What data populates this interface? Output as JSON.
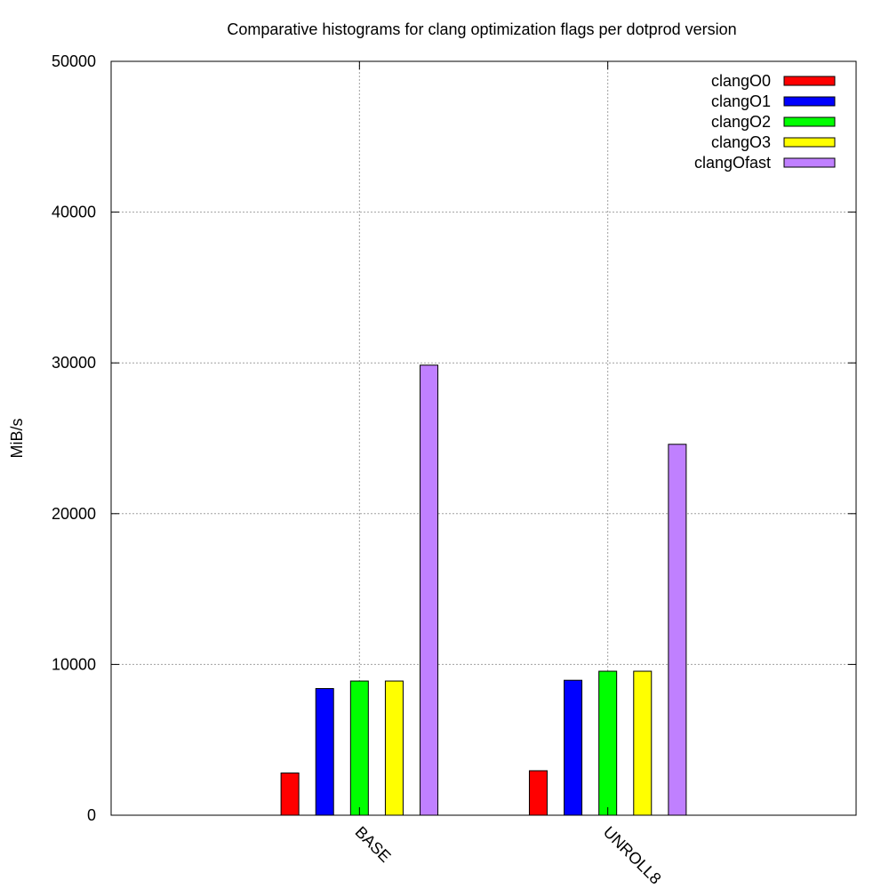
{
  "chart_data": {
    "type": "bar",
    "title": "Comparative histograms for clang optimization flags per dotprod version",
    "xlabel": "",
    "ylabel": "MiB/s",
    "ylim": [
      0,
      50000
    ],
    "y_ticks": [
      0,
      10000,
      20000,
      30000,
      40000,
      50000
    ],
    "y_tick_labels": [
      "0",
      "10000",
      "20000",
      "30000",
      "40000",
      "50000"
    ],
    "x_range": [
      -1,
      2
    ],
    "categories": [
      "BASE",
      "UNROLL8"
    ],
    "grid": true,
    "legend_position": "top-right",
    "series": [
      {
        "name": "clangO0",
        "color": "#ff0000",
        "values": [
          2800,
          2950
        ]
      },
      {
        "name": "clangO1",
        "color": "#0000ff",
        "values": [
          8400,
          8950
        ]
      },
      {
        "name": "clangO2",
        "color": "#00ff00",
        "values": [
          8900,
          9550
        ]
      },
      {
        "name": "clangO3",
        "color": "#ffff00",
        "values": [
          8900,
          9550
        ]
      },
      {
        "name": "clangOfast",
        "color": "#c080ff",
        "values": [
          29850,
          24600
        ]
      }
    ]
  }
}
